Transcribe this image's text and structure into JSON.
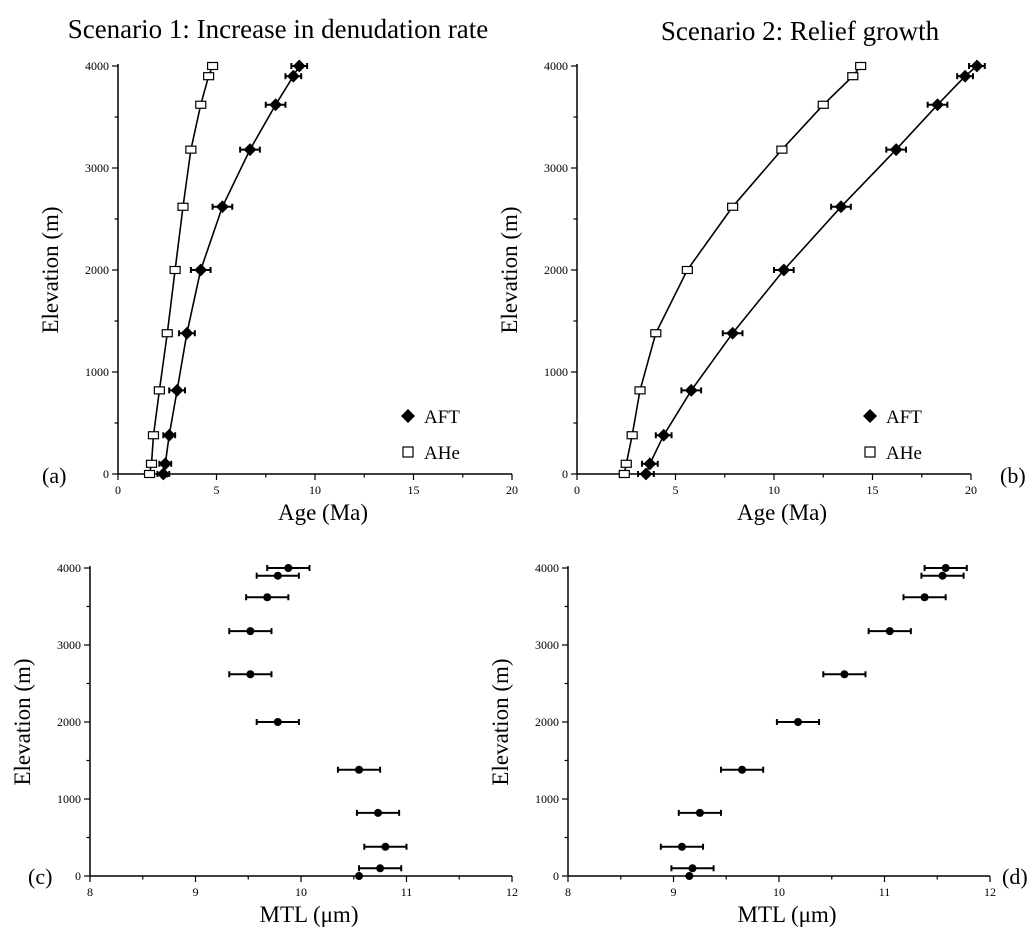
{
  "chart_data": [
    {
      "id": "a",
      "type": "line",
      "title": "Scenario 1: Increase in denudation rate",
      "panel_label": "(a)",
      "xlabel": "Age (Ma)",
      "ylabel": "Elevation (m)",
      "xlim": [
        0,
        20
      ],
      "ylim": [
        0,
        4000
      ],
      "xticks": [
        0,
        5,
        10,
        15,
        20
      ],
      "yticks": [
        0,
        1000,
        2000,
        3000,
        4000
      ],
      "legend": "bottom-right",
      "series": [
        {
          "name": "AFT",
          "marker": "filled-diamond",
          "points": [
            {
              "x": 2.3,
              "y": 0,
              "xerr": 0.3
            },
            {
              "x": 2.4,
              "y": 100,
              "xerr": 0.3
            },
            {
              "x": 2.6,
              "y": 380,
              "xerr": 0.3
            },
            {
              "x": 3.0,
              "y": 820,
              "xerr": 0.4
            },
            {
              "x": 3.5,
              "y": 1380,
              "xerr": 0.4
            },
            {
              "x": 4.2,
              "y": 2000,
              "xerr": 0.5
            },
            {
              "x": 5.3,
              "y": 2620,
              "xerr": 0.5
            },
            {
              "x": 6.7,
              "y": 3180,
              "xerr": 0.5
            },
            {
              "x": 8.0,
              "y": 3620,
              "xerr": 0.5
            },
            {
              "x": 8.9,
              "y": 3900,
              "xerr": 0.4
            },
            {
              "x": 9.2,
              "y": 4000,
              "xerr": 0.4
            }
          ]
        },
        {
          "name": "AHe",
          "marker": "open-square",
          "points": [
            {
              "x": 1.6,
              "y": 0,
              "xerr": 0.2
            },
            {
              "x": 1.7,
              "y": 100,
              "xerr": 0.2
            },
            {
              "x": 1.8,
              "y": 380,
              "xerr": 0.2
            },
            {
              "x": 2.1,
              "y": 820,
              "xerr": 0.2
            },
            {
              "x": 2.5,
              "y": 1380,
              "xerr": 0.2
            },
            {
              "x": 2.9,
              "y": 2000,
              "xerr": 0.2
            },
            {
              "x": 3.3,
              "y": 2620,
              "xerr": 0.2
            },
            {
              "x": 3.7,
              "y": 3180,
              "xerr": 0.2
            },
            {
              "x": 4.2,
              "y": 3620,
              "xerr": 0.2
            },
            {
              "x": 4.6,
              "y": 3900,
              "xerr": 0.2
            },
            {
              "x": 4.8,
              "y": 4000,
              "xerr": 0.2
            }
          ]
        }
      ]
    },
    {
      "id": "b",
      "type": "line",
      "title": "Scenario 2: Relief growth",
      "panel_label": "(b)",
      "xlabel": "Age (Ma)",
      "ylabel": "Elevation (m)",
      "xlim": [
        0,
        20
      ],
      "ylim": [
        0,
        4000
      ],
      "xticks": [
        0,
        5,
        10,
        15,
        20
      ],
      "yticks": [
        0,
        1000,
        2000,
        3000,
        4000
      ],
      "legend": "bottom-right",
      "series": [
        {
          "name": "AFT",
          "marker": "filled-diamond",
          "points": [
            {
              "x": 3.5,
              "y": 0,
              "xerr": 0.4
            },
            {
              "x": 3.7,
              "y": 100,
              "xerr": 0.4
            },
            {
              "x": 4.4,
              "y": 380,
              "xerr": 0.4
            },
            {
              "x": 5.8,
              "y": 820,
              "xerr": 0.5
            },
            {
              "x": 7.9,
              "y": 1380,
              "xerr": 0.5
            },
            {
              "x": 10.5,
              "y": 2000,
              "xerr": 0.5
            },
            {
              "x": 13.4,
              "y": 2620,
              "xerr": 0.5
            },
            {
              "x": 16.2,
              "y": 3180,
              "xerr": 0.5
            },
            {
              "x": 18.3,
              "y": 3620,
              "xerr": 0.5
            },
            {
              "x": 19.7,
              "y": 3900,
              "xerr": 0.4
            },
            {
              "x": 20.3,
              "y": 4000,
              "xerr": 0.4
            }
          ]
        },
        {
          "name": "AHe",
          "marker": "open-square",
          "points": [
            {
              "x": 2.4,
              "y": 0,
              "xerr": 0.2
            },
            {
              "x": 2.5,
              "y": 100,
              "xerr": 0.2
            },
            {
              "x": 2.8,
              "y": 380,
              "xerr": 0.2
            },
            {
              "x": 3.2,
              "y": 820,
              "xerr": 0.2
            },
            {
              "x": 4.0,
              "y": 1380,
              "xerr": 0.2
            },
            {
              "x": 5.6,
              "y": 2000,
              "xerr": 0.2
            },
            {
              "x": 7.9,
              "y": 2620,
              "xerr": 0.2
            },
            {
              "x": 10.4,
              "y": 3180,
              "xerr": 0.2
            },
            {
              "x": 12.5,
              "y": 3620,
              "xerr": 0.2
            },
            {
              "x": 14.0,
              "y": 3900,
              "xerr": 0.2
            },
            {
              "x": 14.4,
              "y": 4000,
              "xerr": 0.2
            }
          ]
        }
      ]
    },
    {
      "id": "c",
      "type": "scatter",
      "title": "",
      "panel_label": "(c)",
      "xlabel": "MTL (μm)",
      "ylabel": "Elevation (m)",
      "xlim": [
        8,
        12
      ],
      "ylim": [
        0,
        4000
      ],
      "xticks": [
        8,
        9,
        10,
        11,
        12
      ],
      "yticks": [
        0,
        1000,
        2000,
        3000,
        4000
      ],
      "series": [
        {
          "name": "",
          "marker": "filled-circle",
          "points": [
            {
              "x": 10.55,
              "y": 0,
              "xerr": 0.0
            },
            {
              "x": 10.75,
              "y": 100,
              "xerr": 0.2
            },
            {
              "x": 10.8,
              "y": 380,
              "xerr": 0.2
            },
            {
              "x": 10.73,
              "y": 820,
              "xerr": 0.2
            },
            {
              "x": 10.55,
              "y": 1380,
              "xerr": 0.2
            },
            {
              "x": 9.78,
              "y": 2000,
              "xerr": 0.2
            },
            {
              "x": 9.52,
              "y": 2620,
              "xerr": 0.2
            },
            {
              "x": 9.52,
              "y": 3180,
              "xerr": 0.2
            },
            {
              "x": 9.68,
              "y": 3620,
              "xerr": 0.2
            },
            {
              "x": 9.78,
              "y": 3900,
              "xerr": 0.2
            },
            {
              "x": 9.88,
              "y": 4000,
              "xerr": 0.2
            }
          ]
        }
      ]
    },
    {
      "id": "d",
      "type": "scatter",
      "title": "",
      "panel_label": "(d)",
      "xlabel": "MTL (μm)",
      "ylabel": "Elevation (m)",
      "xlim": [
        8,
        12
      ],
      "ylim": [
        0,
        4000
      ],
      "xticks": [
        8,
        9,
        10,
        11,
        12
      ],
      "yticks": [
        0,
        1000,
        2000,
        3000,
        4000
      ],
      "series": [
        {
          "name": "",
          "marker": "filled-circle",
          "points": [
            {
              "x": 9.15,
              "y": 0,
              "xerr": 0.0
            },
            {
              "x": 9.18,
              "y": 100,
              "xerr": 0.2
            },
            {
              "x": 9.08,
              "y": 380,
              "xerr": 0.2
            },
            {
              "x": 9.25,
              "y": 820,
              "xerr": 0.2
            },
            {
              "x": 9.65,
              "y": 1380,
              "xerr": 0.2
            },
            {
              "x": 10.18,
              "y": 2000,
              "xerr": 0.2
            },
            {
              "x": 10.62,
              "y": 2620,
              "xerr": 0.2
            },
            {
              "x": 11.05,
              "y": 3180,
              "xerr": 0.2
            },
            {
              "x": 11.38,
              "y": 3620,
              "xerr": 0.2
            },
            {
              "x": 11.55,
              "y": 3900,
              "xerr": 0.2
            },
            {
              "x": 11.58,
              "y": 4000,
              "xerr": 0.2
            }
          ]
        }
      ]
    }
  ]
}
